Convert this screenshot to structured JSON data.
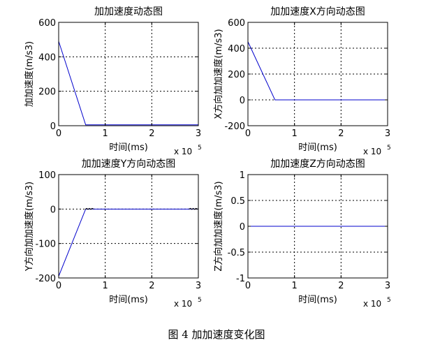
{
  "figure_caption": "图 4  加加速度变化图",
  "chart_data": [
    {
      "type": "line",
      "title": "加加速度动态图",
      "xlabel": "时间(ms)",
      "ylabel": "加加速度(m/s3)",
      "x_exponent": "x 10",
      "x_exponent_power": "5",
      "xlim": [
        0,
        3
      ],
      "ylim": [
        0,
        600
      ],
      "xticks": [
        0,
        1,
        2,
        3
      ],
      "yticks": [
        0,
        200,
        400,
        600
      ],
      "grid": true,
      "series": [
        {
          "color": "#0000cc",
          "x": [
            0,
            0.58,
            0.62,
            3
          ],
          "y": [
            490,
            5,
            5,
            5
          ]
        }
      ]
    },
    {
      "type": "line",
      "title": "加加速度X方向动态图",
      "xlabel": "时间(ms)",
      "ylabel": "X方向加加速度(m/s3)",
      "x_exponent": "x 10",
      "x_exponent_power": "5",
      "xlim": [
        0,
        3
      ],
      "ylim": [
        -200,
        600
      ],
      "xticks": [
        0,
        1,
        2,
        3
      ],
      "yticks": [
        -200,
        0,
        200,
        400,
        600
      ],
      "grid": true,
      "series": [
        {
          "color": "#0000cc",
          "x": [
            0,
            0.58,
            3
          ],
          "y": [
            450,
            0,
            0
          ]
        }
      ]
    },
    {
      "type": "line",
      "title": "加加速度Y方向动态图",
      "xlabel": "时间(ms)",
      "ylabel": "Y方向加加速度(m/s3)",
      "x_exponent": "x 10",
      "x_exponent_power": "5",
      "xlim": [
        0,
        3
      ],
      "ylim": [
        -200,
        100
      ],
      "xticks": [
        0,
        1,
        2,
        3
      ],
      "yticks": [
        -200,
        -100,
        0,
        100
      ],
      "grid": true,
      "series": [
        {
          "color": "#0000cc",
          "x": [
            0,
            0.58,
            3
          ],
          "y": [
            -195,
            0,
            0
          ]
        },
        {
          "color": "#000000",
          "x": [
            0.57,
            0.6,
            0.63,
            0.66,
            0.69,
            0.72,
            0.75
          ],
          "y": [
            -1,
            2,
            -1,
            2,
            -1,
            2,
            0
          ]
        },
        {
          "color": "#000000",
          "x": [
            2.8,
            2.83,
            2.86,
            2.89,
            2.92,
            2.95,
            2.98
          ],
          "y": [
            0,
            2,
            -1,
            2,
            -1,
            2,
            0
          ]
        }
      ]
    },
    {
      "type": "line",
      "title": "加加速度Z方向动态图",
      "xlabel": "时间(ms)",
      "ylabel": "Z方向加加速度(m/s3)",
      "x_exponent": "x 10",
      "x_exponent_power": "5",
      "xlim": [
        0,
        3
      ],
      "ylim": [
        -1,
        1
      ],
      "xticks": [
        0,
        1,
        2,
        3
      ],
      "yticks": [
        -1,
        -0.5,
        0,
        0.5,
        1
      ],
      "grid": true,
      "series": [
        {
          "color": "#0000cc",
          "x": [
            0,
            3
          ],
          "y": [
            0,
            0
          ]
        }
      ]
    }
  ]
}
